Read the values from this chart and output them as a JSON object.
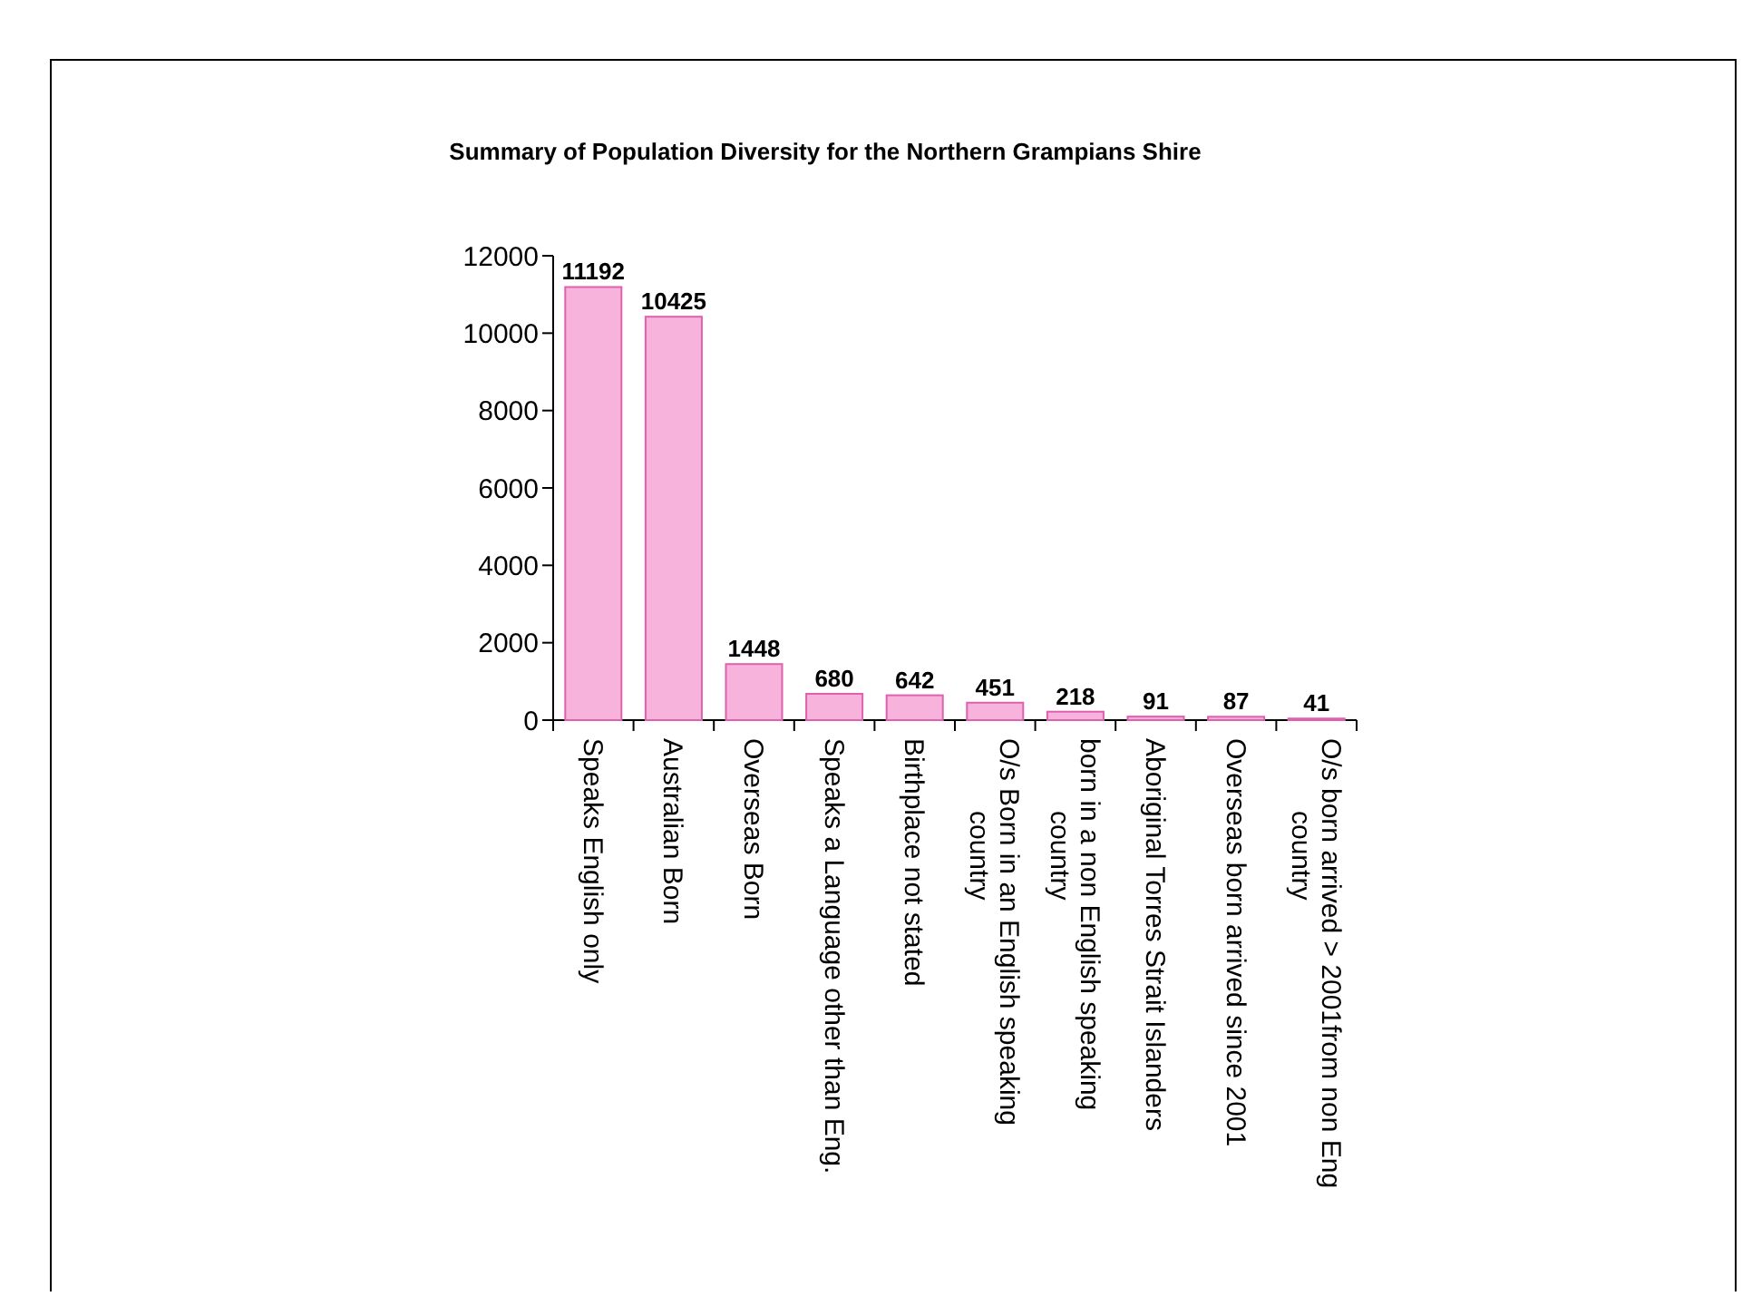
{
  "chart_data": {
    "type": "bar",
    "title": "Summary of Population Diversity for the Northern Grampians Shire",
    "categories": [
      "Speaks English only",
      "Australian Born",
      "Overseas Born",
      "Speaks a Language other than Eng.",
      "Birthplace not stated",
      "O/s Born in an English speaking country",
      "born in a non English speaking country",
      "Aboriginal Torres Strait Islanders",
      "Overseas born  arrived since 2001",
      "O/s born arrived > 2001from non Eng country"
    ],
    "values": [
      11192,
      10425,
      1448,
      680,
      642,
      451,
      218,
      91,
      87,
      41
    ],
    "color": "#f7b3dc",
    "data_labels": true,
    "grid": false,
    "ylim": [
      0,
      12000
    ],
    "yticks": [
      0,
      2000,
      4000,
      6000,
      8000,
      10000,
      12000
    ]
  }
}
